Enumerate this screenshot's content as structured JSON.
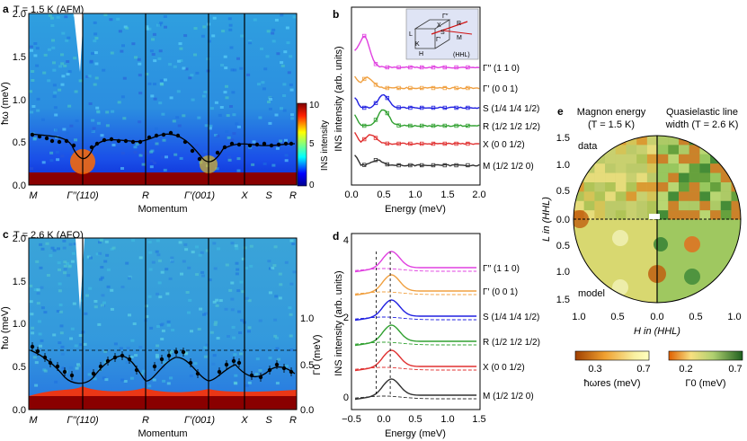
{
  "figure": {
    "panel_labels": [
      "a",
      "b",
      "c",
      "d",
      "e"
    ]
  },
  "panel_a": {
    "title": "T = 1.5 K (AFM)",
    "ylabel": "ħω (meV)",
    "xlabel": "Momentum",
    "yticks": [
      "0.0",
      "0.5",
      "1.0",
      "1.5",
      "2.0"
    ],
    "xticks": [
      "M",
      "Γ′′(110)",
      "R",
      "Γ′(001)",
      "X",
      "S",
      "R"
    ],
    "colorbar_label": "INS intensity",
    "colorbar_ticks": [
      "10",
      "5",
      "0"
    ]
  },
  "panel_c": {
    "title": "T = 2.6 K (AFQ)",
    "ylabel": "ħω (meV)",
    "xlabel": "Momentum",
    "yticks": [
      "0.0",
      "0.5",
      "1.0",
      "1.5",
      "2.0"
    ],
    "xticks": [
      "M",
      "Γ′′(110)",
      "R",
      "Γ′(001)",
      "X",
      "S",
      "R"
    ],
    "right_ylabel": "Γ0 (meV)",
    "right_yticks": [
      "0.0",
      "0.5",
      "1.0"
    ]
  },
  "panel_b": {
    "ylabel": "INS intensity (arb. units)",
    "xlabel": "Energy (meV)",
    "xticks": [
      "0.0",
      "0.5",
      "1.0",
      "1.5",
      "2.0"
    ],
    "inset_labels": [
      "Γ′′",
      "R",
      "X",
      "S",
      "Γ′",
      "M",
      "L",
      "K",
      "H",
      "(HHL)"
    ],
    "curves": [
      {
        "label": "Γ′′ (1 1 0)",
        "color": "#e040e0",
        "offset": 5
      },
      {
        "label": "Γ′ (0 0 1)",
        "color": "#f0a040",
        "offset": 4
      },
      {
        "label": "S (1/4 1/4 1/2)",
        "color": "#2020e0",
        "offset": 3
      },
      {
        "label": "R (1/2 1/2 1/2)",
        "color": "#30a030",
        "offset": 2
      },
      {
        "label": "X (0 0 1/2)",
        "color": "#e03030",
        "offset": 1
      },
      {
        "label": "M (1/2 1/2 0)",
        "color": "#303030",
        "offset": 0
      }
    ]
  },
  "panel_d": {
    "ylabel": "INS intensity (arb. units)",
    "xlabel": "Energy (meV)",
    "xticks": [
      "−0.5",
      "0.0",
      "0.5",
      "1.0",
      "1.5"
    ],
    "yticks": [
      "0",
      "2",
      "4"
    ],
    "curves": [
      {
        "label": "Γ′′ (1 1 0)",
        "color": "#e040e0",
        "offset": 5
      },
      {
        "label": "Γ′ (0 0 1)",
        "color": "#f0a040",
        "offset": 4
      },
      {
        "label": "S (1/4 1/4 1/2)",
        "color": "#2020e0",
        "offset": 3
      },
      {
        "label": "R (1/2 1/2 1/2)",
        "color": "#30a030",
        "offset": 2
      },
      {
        "label": "X (0 0 1/2)",
        "color": "#e03030",
        "offset": 1
      },
      {
        "label": "M (1/2 1/2 0)",
        "color": "#303030",
        "offset": 0
      }
    ]
  },
  "panel_e": {
    "left_title_line1": "Magnon energy",
    "left_title_line2": "(T = 1.5 K)",
    "right_title_line1": "Quasielastic line",
    "right_title_line2": "width (T = 2.6 K)",
    "ylabel": "L in (HHL)",
    "xlabel": "H in (HHL)",
    "yticks": [
      "1.5",
      "1.0",
      "0.5",
      "0.0",
      "0.5",
      "1.0",
      "1.5"
    ],
    "xticks": [
      "1.0",
      "0.5",
      "0.0",
      "0.5",
      "1.0"
    ],
    "data_label": "data",
    "model_label": "model",
    "cbar_left": {
      "label": "ħωres (meV)",
      "ticks": [
        "0.3",
        "0.7"
      ]
    },
    "cbar_right": {
      "label": "Γ0 (meV)",
      "ticks": [
        "0.2",
        "0.7"
      ]
    }
  }
}
